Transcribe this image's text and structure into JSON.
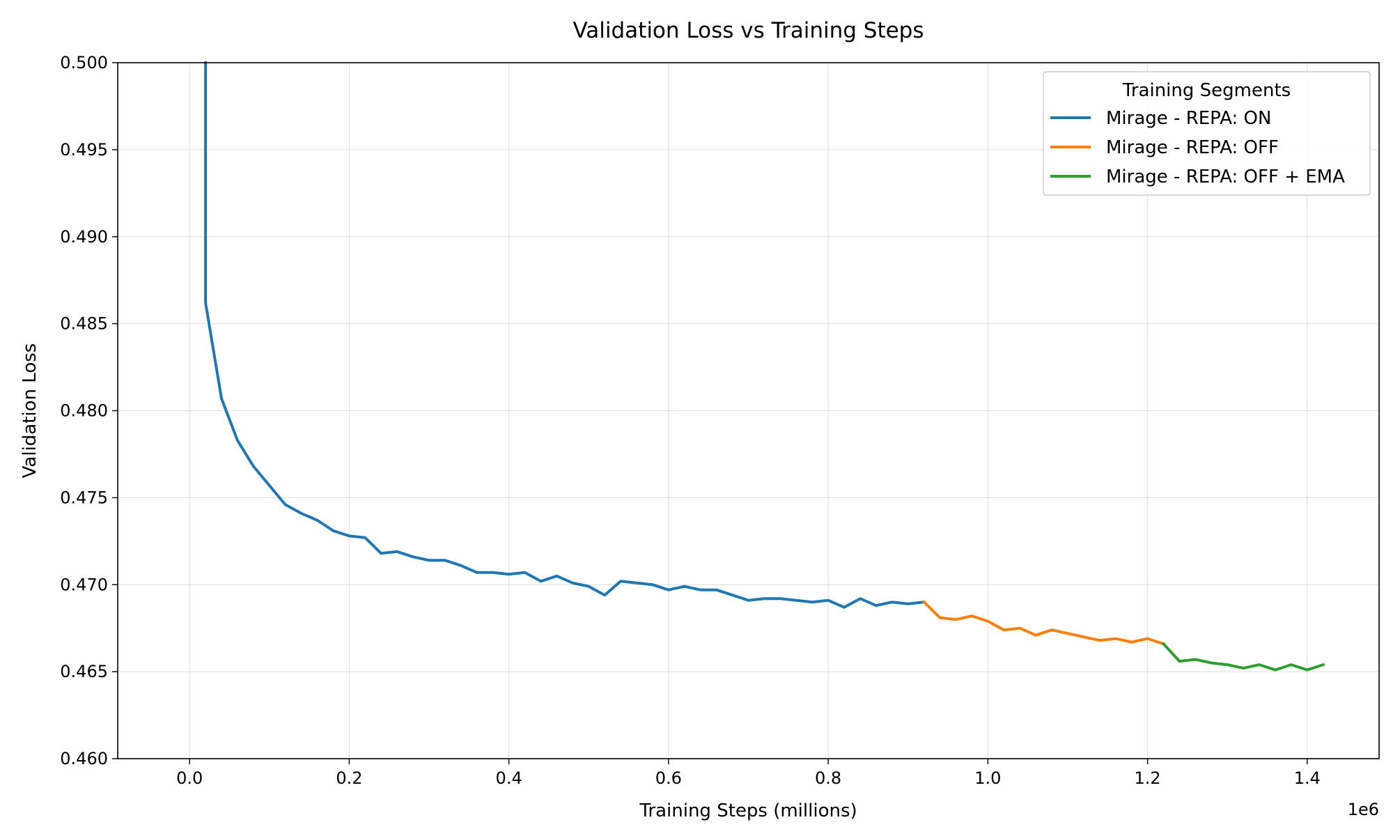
{
  "chart_data": {
    "type": "line",
    "title": "Validation Loss vs Training Steps",
    "xlabel": "Training Steps (millions)",
    "ylabel": "Validation Loss",
    "x_offset_label": "1e6",
    "xlim": [
      -0.09,
      1.49
    ],
    "ylim": [
      0.46,
      0.5
    ],
    "x_ticks": [
      0.0,
      0.2,
      0.4,
      0.6,
      0.8,
      1.0,
      1.2,
      1.4
    ],
    "x_tick_labels": [
      "0.0",
      "0.2",
      "0.4",
      "0.6",
      "0.8",
      "1.0",
      "1.2",
      "1.4"
    ],
    "y_ticks": [
      0.46,
      0.465,
      0.47,
      0.475,
      0.48,
      0.485,
      0.49,
      0.495,
      0.5
    ],
    "y_tick_labels": [
      "0.460",
      "0.465",
      "0.470",
      "0.475",
      "0.480",
      "0.485",
      "0.490",
      "0.495",
      "0.500"
    ],
    "grid": true,
    "legend": {
      "title": "Training Segments",
      "placement": "top-right"
    },
    "series": [
      {
        "name": "Mirage - REPA: ON",
        "color": "#1f77b4",
        "x": [
          0.02,
          0.02,
          0.04,
          0.06,
          0.08,
          0.1,
          0.12,
          0.14,
          0.16,
          0.18,
          0.2,
          0.22,
          0.24,
          0.26,
          0.28,
          0.3,
          0.32,
          0.34,
          0.36,
          0.38,
          0.4,
          0.42,
          0.44,
          0.46,
          0.48,
          0.5,
          0.52,
          0.54,
          0.56,
          0.58,
          0.6,
          0.62,
          0.64,
          0.66,
          0.68,
          0.7,
          0.72,
          0.74,
          0.76,
          0.78,
          0.8,
          0.82,
          0.84,
          0.86,
          0.88,
          0.9,
          0.92
        ],
        "y": [
          0.5,
          0.4862,
          0.4807,
          0.4783,
          0.4768,
          0.4757,
          0.4746,
          0.4741,
          0.4737,
          0.4731,
          0.4728,
          0.4727,
          0.4718,
          0.4719,
          0.4716,
          0.4714,
          0.4714,
          0.4711,
          0.4707,
          0.4707,
          0.4706,
          0.4707,
          0.4702,
          0.4705,
          0.4701,
          0.4699,
          0.4694,
          0.4702,
          0.4701,
          0.47,
          0.4697,
          0.4699,
          0.4697,
          0.4697,
          0.4694,
          0.4691,
          0.4692,
          0.4692,
          0.4691,
          0.469,
          0.4691,
          0.4687,
          0.4692,
          0.4688,
          0.469,
          0.4689,
          0.469
        ]
      },
      {
        "name": "Mirage - REPA: OFF",
        "color": "#ff7f0e",
        "x": [
          0.92,
          0.94,
          0.96,
          0.98,
          1.0,
          1.02,
          1.04,
          1.06,
          1.08,
          1.1,
          1.12,
          1.14,
          1.16,
          1.18,
          1.2,
          1.22
        ],
        "y": [
          0.469,
          0.4681,
          0.468,
          0.4682,
          0.4679,
          0.4674,
          0.4675,
          0.4671,
          0.4674,
          0.4672,
          0.467,
          0.4668,
          0.4669,
          0.4667,
          0.4669,
          0.4666
        ]
      },
      {
        "name": "Mirage - REPA: OFF + EMA",
        "color": "#2ca02c",
        "x": [
          1.22,
          1.24,
          1.26,
          1.28,
          1.3,
          1.32,
          1.34,
          1.36,
          1.38,
          1.4,
          1.42
        ],
        "y": [
          0.4666,
          0.4656,
          0.4657,
          0.4655,
          0.4654,
          0.4652,
          0.4654,
          0.4651,
          0.4654,
          0.4651,
          0.4654
        ]
      }
    ]
  }
}
